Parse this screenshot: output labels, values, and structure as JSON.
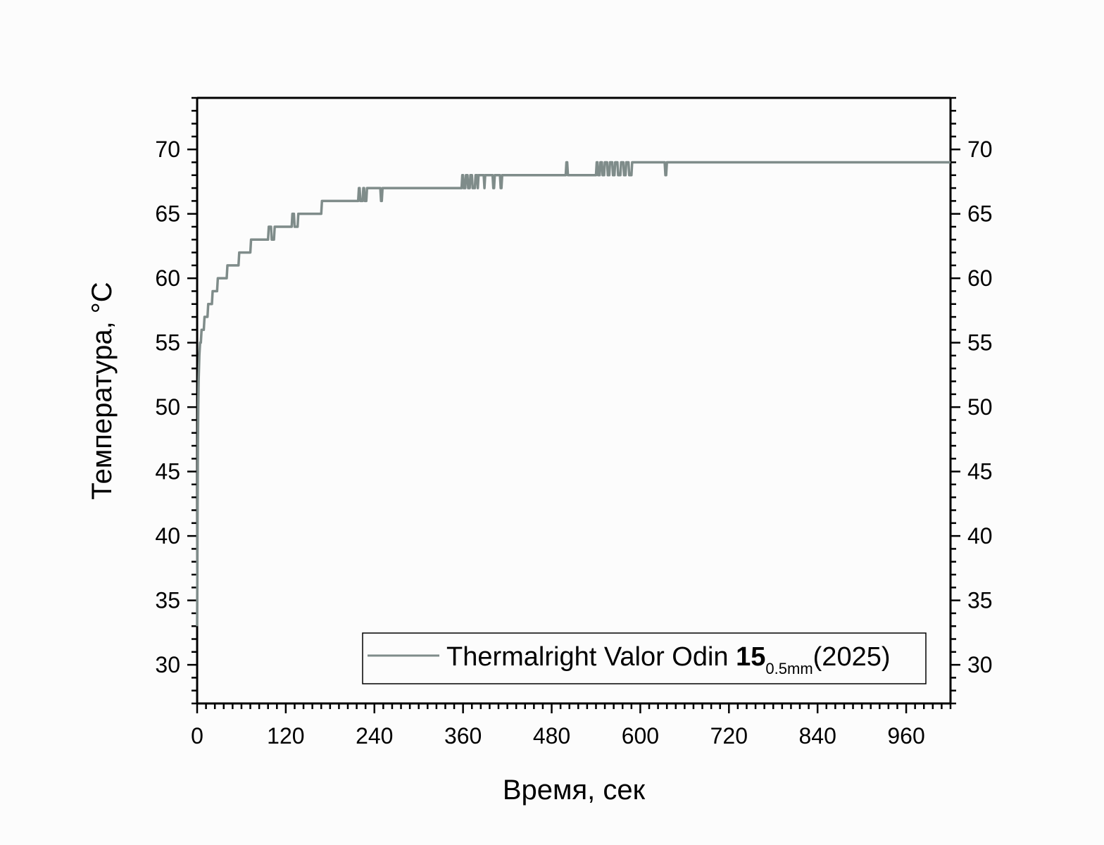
{
  "chart_data": {
    "type": "line",
    "xlabel": "Время, сек",
    "ylabel": "Температура, °C",
    "xlim": [
      0,
      1020
    ],
    "ylim": [
      27,
      74
    ],
    "x_ticks": [
      0,
      120,
      240,
      360,
      480,
      600,
      720,
      840,
      960
    ],
    "x_tick_labels": [
      "0",
      "120",
      "240",
      "360",
      "480",
      "600",
      "720",
      "840",
      "960"
    ],
    "y_ticks": [
      30,
      35,
      40,
      45,
      50,
      55,
      60,
      65,
      70
    ],
    "y_tick_labels": [
      "30",
      "35",
      "40",
      "45",
      "50",
      "55",
      "60",
      "65",
      "70"
    ],
    "grid": false,
    "legend_position": "bottom-right",
    "colors": {
      "series": "#7f8c8a",
      "axis": "#000000",
      "background": "#fcfcfc"
    },
    "series": [
      {
        "legend": {
          "main": "Thermalright Valor Odin ",
          "bold": "15",
          "sub": "0.5mm",
          "suffix": "(2025)"
        },
        "x": [
          0,
          0.5,
          1,
          1.5,
          2,
          3,
          4,
          5,
          6,
          7,
          8,
          9,
          10,
          11,
          12,
          14,
          15,
          17,
          18,
          20,
          21,
          24,
          25,
          27,
          28,
          33,
          34,
          40,
          41,
          50,
          51,
          56,
          57,
          64,
          65,
          72,
          73,
          90,
          91,
          96,
          97,
          100,
          101,
          104,
          105,
          128,
          129,
          131,
          132,
          136,
          137,
          168,
          169,
          170,
          171,
          200,
          218,
          219,
          220,
          221,
          224,
          225,
          226,
          227,
          229,
          230,
          248,
          249,
          250,
          251,
          252,
          300,
          358,
          359,
          360,
          361,
          363,
          364,
          366,
          367,
          369,
          370,
          372,
          373,
          376,
          377,
          378,
          379,
          380,
          381,
          388,
          389,
          390,
          400,
          401,
          402,
          403,
          410,
          411,
          412,
          413,
          450,
          499,
          500,
          501,
          502,
          540,
          541,
          542,
          543,
          545,
          546,
          548,
          549,
          551,
          552,
          555,
          556,
          558,
          559,
          562,
          563,
          565,
          566,
          569,
          570,
          573,
          574,
          577,
          578,
          580,
          581,
          584,
          585,
          588,
          589,
          590,
          600,
          633,
          634,
          635,
          636,
          700,
          800,
          900,
          1020
        ],
        "y": [
          33,
          41,
          47,
          50,
          52,
          54,
          55,
          55,
          56,
          56,
          56,
          56,
          57,
          57,
          57,
          57,
          58,
          58,
          58,
          58,
          59,
          59,
          59,
          59,
          60,
          60,
          60,
          60,
          61,
          61,
          61,
          61,
          62,
          62,
          62,
          62,
          63,
          63,
          63,
          63,
          64,
          64,
          63,
          63,
          64,
          64,
          65,
          65,
          64,
          64,
          65,
          65,
          66,
          66,
          66,
          66,
          66,
          67,
          67,
          66,
          66,
          67,
          67,
          66,
          66,
          67,
          67,
          66,
          66,
          67,
          67,
          67,
          67,
          68,
          68,
          67,
          67,
          68,
          68,
          67,
          67,
          68,
          68,
          67,
          67,
          68,
          68,
          68,
          67,
          68,
          68,
          67,
          68,
          68,
          67,
          67,
          68,
          68,
          67,
          67,
          68,
          68,
          68,
          69,
          69,
          68,
          68,
          69,
          69,
          68,
          68,
          69,
          69,
          68,
          68,
          69,
          69,
          68,
          68,
          69,
          69,
          68,
          68,
          69,
          69,
          68,
          68,
          69,
          69,
          68,
          68,
          69,
          69,
          68,
          68,
          69,
          69,
          69,
          69,
          68,
          68,
          69,
          69,
          69,
          69,
          69
        ]
      }
    ]
  }
}
